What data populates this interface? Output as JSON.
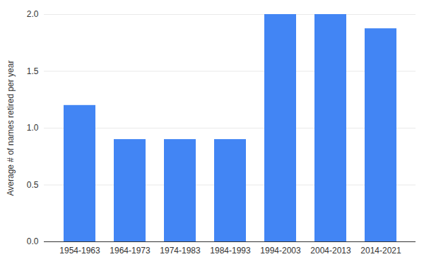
{
  "chart_data": {
    "type": "bar",
    "ylabel": "Average # of names retired per year",
    "categories": [
      "1954-1963",
      "1964-1973",
      "1974-1983",
      "1984-1993",
      "1994-2003",
      "2004-2013",
      "2014-2021"
    ],
    "values": [
      1.2,
      0.9,
      0.9,
      0.9,
      2.0,
      2.0,
      1.875
    ],
    "color": "#4285f4",
    "ylim": [
      0,
      2
    ],
    "yticks": [
      {
        "value": 0,
        "label": "0.0"
      },
      {
        "value": 0.5,
        "label": "0.5"
      },
      {
        "value": 1,
        "label": "1.0"
      },
      {
        "value": 1.5,
        "label": "1.5"
      },
      {
        "value": 2,
        "label": "2.0"
      }
    ],
    "grid": true
  }
}
